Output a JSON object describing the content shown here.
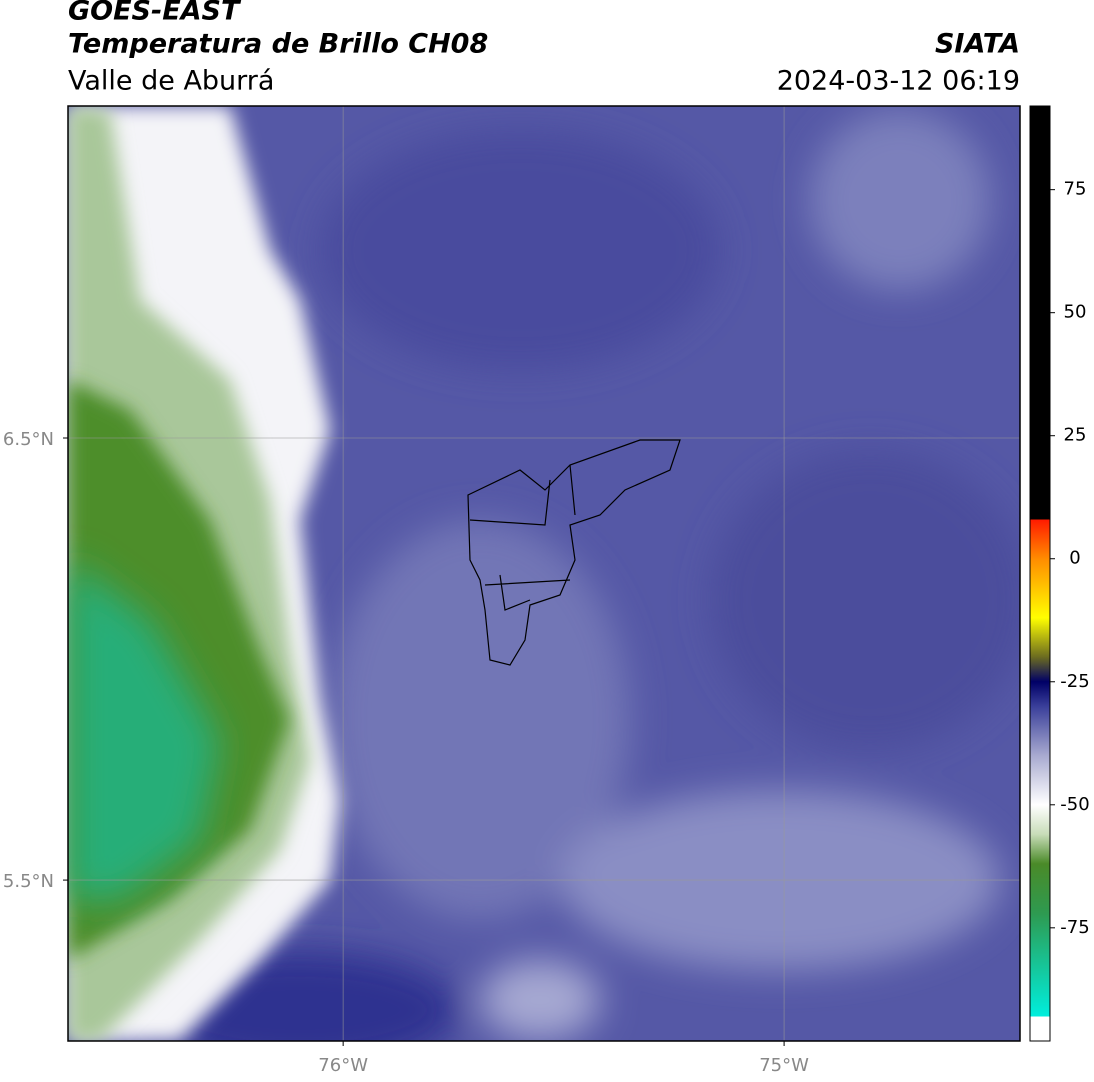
{
  "header": {
    "title": "GOES-EAST",
    "subtitle": "Temperatura de Brillo CH08",
    "region": "Valle de Aburrá",
    "source": "SIATA",
    "datetime": "2024-03-12 06:19"
  },
  "map": {
    "lonlim": [
      -76.624,
      -74.465
    ],
    "latlim": [
      5.136,
      7.251
    ],
    "lat_ticks": [
      {
        "value": 6.5,
        "label": "6.5°N"
      },
      {
        "value": 5.5,
        "label": "5.5°N"
      }
    ],
    "lon_ticks": [
      {
        "value": -76,
        "label": "76°W"
      },
      {
        "value": -75,
        "label": "75°W"
      }
    ],
    "grid": true
  },
  "colorbar": {
    "lim": [
      -98,
      92
    ],
    "ticks": [
      75,
      50,
      25,
      0,
      -25,
      -50,
      -75
    ],
    "stops": [
      [
        92,
        "#000000"
      ],
      [
        8,
        "#000000"
      ],
      [
        8,
        "#ff1a00"
      ],
      [
        0,
        "#ff8c00"
      ],
      [
        -12,
        "#ffff00"
      ],
      [
        -20,
        "#6b6b20"
      ],
      [
        -25,
        "#000066"
      ],
      [
        -30,
        "#3a3f9a"
      ],
      [
        -40,
        "#a8aad0"
      ],
      [
        -50,
        "#ffffff"
      ],
      [
        -56,
        "#c8dcb8"
      ],
      [
        -62,
        "#4a8a28"
      ],
      [
        -72,
        "#2e9a50"
      ],
      [
        -93,
        "#00eedd"
      ],
      [
        -93,
        "#ffffff"
      ],
      [
        -98,
        "#ffffff"
      ]
    ]
  }
}
